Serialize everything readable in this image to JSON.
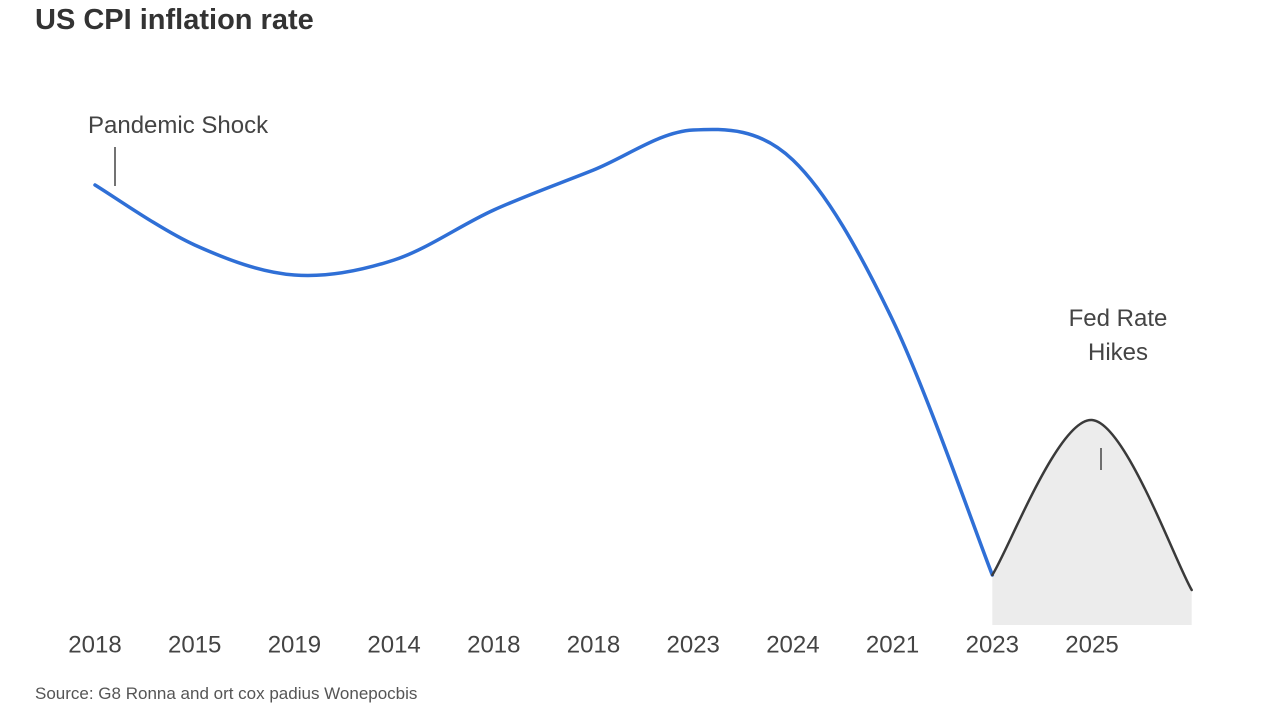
{
  "chart_data": {
    "type": "line",
    "title": "US CPI inflation rate",
    "categories": [
      "2018",
      "2015",
      "2019",
      "2014",
      "2018",
      "2018",
      "2023",
      "2024",
      "2021",
      "2023",
      "2025",
      null
    ],
    "series": [
      {
        "color": "#2f6fd6",
        "values": [
          8.7,
          7.5,
          6.9,
          7.2,
          8.2,
          9.0,
          9.8,
          9.2,
          6.0,
          0.9,
          null,
          null
        ]
      },
      {
        "color": "#3a3a3a",
        "values": [
          null,
          null,
          null,
          null,
          null,
          null,
          null,
          null,
          null,
          0.9,
          4.0,
          0.6
        ],
        "fill": "#ececec"
      }
    ],
    "ylim": [
      0,
      10
    ],
    "annotations": [
      "Pandemic Shock",
      "Fed Rate Hikes"
    ],
    "source": "Source: G8 Ronna and ort cox padius Wonepocbis"
  }
}
